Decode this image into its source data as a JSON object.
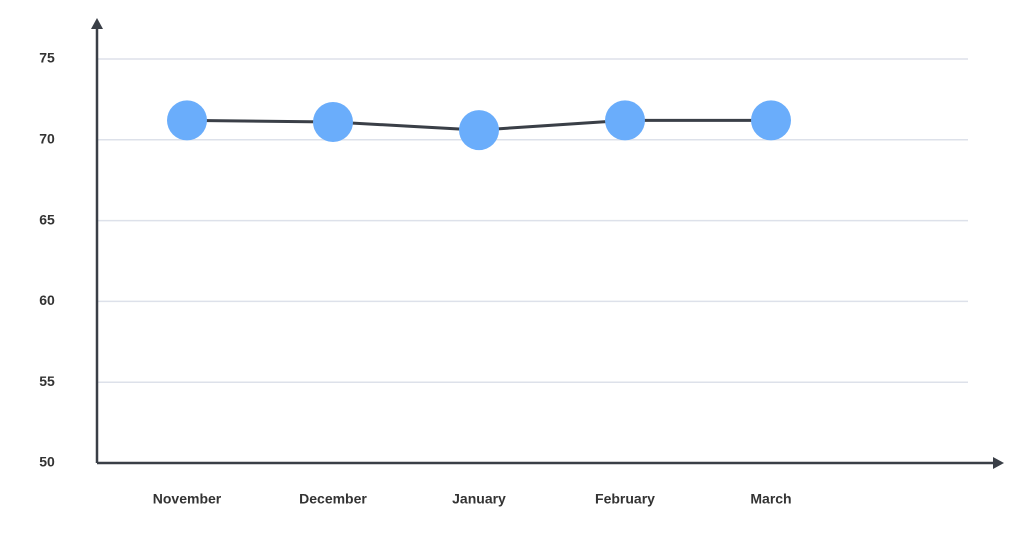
{
  "chart_data": {
    "type": "line",
    "categories": [
      "November",
      "December",
      "January",
      "February",
      "March"
    ],
    "values": [
      71.2,
      71.1,
      70.6,
      71.2,
      71.2
    ],
    "color": "#6aadfb",
    "line_color": "#3a3f47",
    "ylim": [
      50,
      75
    ],
    "yticks": [
      50,
      55,
      60,
      65,
      70,
      75
    ],
    "grid": true
  }
}
